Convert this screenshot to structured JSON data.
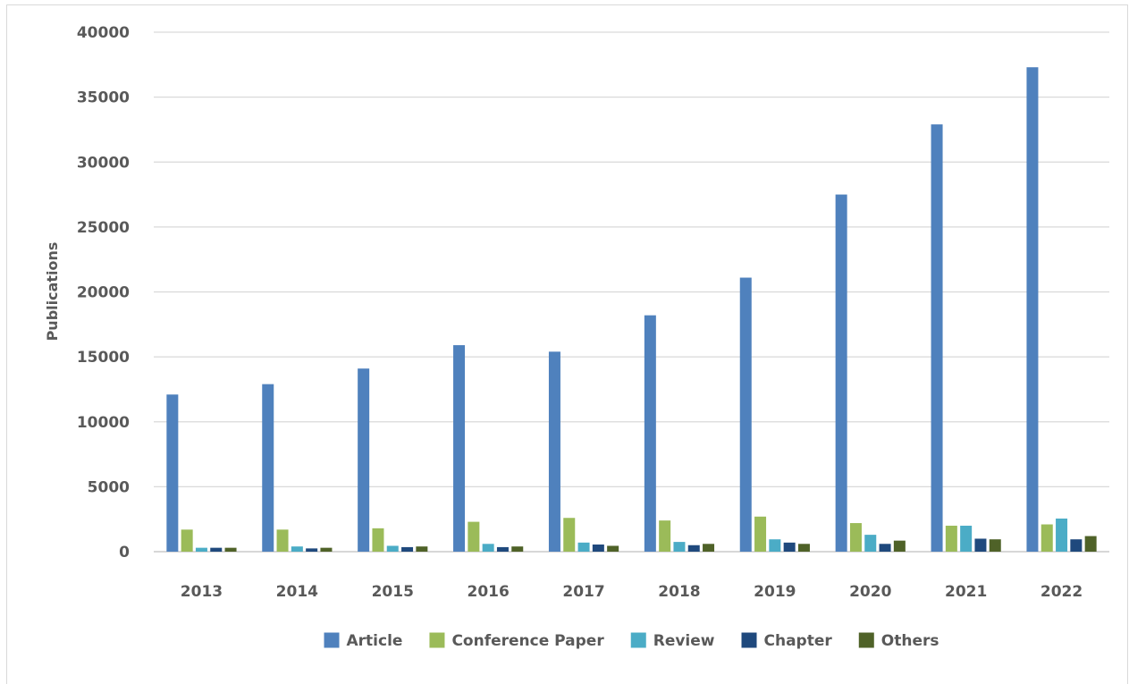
{
  "chart_data": {
    "type": "bar",
    "ylabel": "Publications",
    "xlabel": "",
    "ylim": [
      0,
      40000
    ],
    "yticks": [
      0,
      5000,
      10000,
      15000,
      20000,
      25000,
      30000,
      35000,
      40000
    ],
    "grid": true,
    "legend_position": "bottom",
    "categories": [
      "2013",
      "2014",
      "2015",
      "2016",
      "2017",
      "2018",
      "2019",
      "2020",
      "2021",
      "2022"
    ],
    "series": [
      {
        "name": "Article",
        "color": "#4f81bd",
        "values": [
          12100,
          12900,
          14100,
          15900,
          15400,
          18200,
          21100,
          27500,
          32900,
          37300
        ]
      },
      {
        "name": "Conference Paper",
        "color": "#9bbb59",
        "values": [
          1700,
          1700,
          1800,
          2300,
          2600,
          2400,
          2700,
          2200,
          2000,
          2100
        ]
      },
      {
        "name": "Review",
        "color": "#4bacc6",
        "values": [
          300,
          400,
          450,
          600,
          700,
          750,
          950,
          1300,
          2000,
          2550
        ]
      },
      {
        "name": "Chapter",
        "color": "#1f497d",
        "values": [
          300,
          250,
          350,
          350,
          550,
          500,
          700,
          600,
          1000,
          950
        ]
      },
      {
        "name": "Others",
        "color": "#4f6228",
        "values": [
          300,
          300,
          400,
          400,
          450,
          600,
          600,
          850,
          950,
          1200
        ]
      }
    ]
  }
}
